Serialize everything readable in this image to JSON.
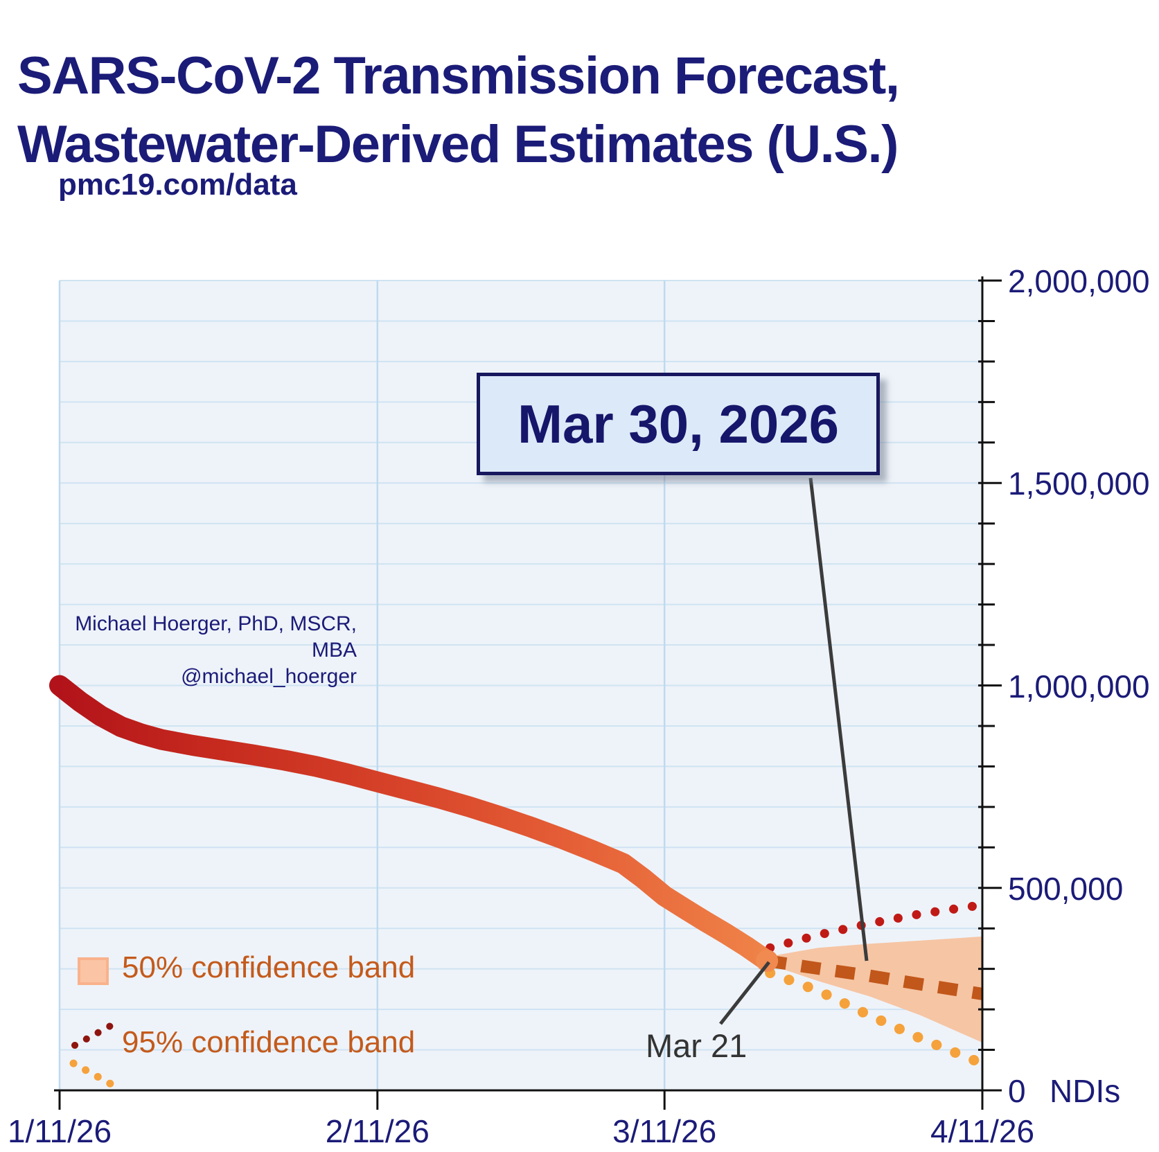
{
  "title": {
    "line1": "SARS-CoV-2 Transmission Forecast,",
    "line2": "Wastewater-Derived Estimates (U.S.)"
  },
  "subtitle": "pmc19.com/data",
  "attribution": {
    "line1": "Michael Hoerger, PhD, MSCR, MBA",
    "line2": "@michael_hoerger"
  },
  "annotations": {
    "forecast_date_callout": "Mar 30, 2026",
    "forecast_start_label": "Mar 21"
  },
  "legend": [
    {
      "label": "50% confidence band"
    },
    {
      "label": "95% confidence band"
    }
  ],
  "y_axis": {
    "unit": "NDIs",
    "tick_labels": [
      "2,000,000",
      "1,500,000",
      "1,000,000",
      "500,000",
      "0"
    ],
    "tick_values": [
      2000000,
      1500000,
      1000000,
      500000,
      0
    ],
    "minor_tick_step": 100000,
    "min": 0,
    "max": 2000000
  },
  "x_axis": {
    "tick_labels": [
      "1/11/26",
      "2/11/26",
      "3/11/26",
      "4/11/26"
    ],
    "tick_days": [
      0,
      31,
      59,
      90
    ],
    "span_days": 90
  },
  "colors": {
    "navy": "#1b1b78",
    "plot_bg": "#eef3f9",
    "grid_h": "#cfe3f2",
    "grid_v": "#bedaef",
    "axis": "#111111",
    "line_gradient": [
      "#b2131a",
      "#c62a1e",
      "#d8452a",
      "#e66238",
      "#ef8348"
    ],
    "knob": "#f08a50",
    "band50_fill": "#f6c5a4",
    "median_dash": "#c1571a",
    "upper95_dots": "#c01a16",
    "lower95_dots": "#f5a23c",
    "legend_maroon_dots": "#8e150f",
    "legend_text": "#c45a1b",
    "annotation_line": "#3b3b3b",
    "callout_bg": "#dce9f8"
  },
  "chart_data": {
    "type": "line",
    "title": "SARS-CoV-2 Transmission Forecast, Wastewater-Derived Estimates (U.S.)",
    "ylabel": "NDIs",
    "ylim": [
      0,
      2000000
    ],
    "x_unit": "days since 1/11/26",
    "grid": true,
    "observed": {
      "name": "wastewater-derived transmission estimate",
      "points": [
        [
          0,
          1000000
        ],
        [
          2,
          960000
        ],
        [
          4,
          925000
        ],
        [
          6,
          898000
        ],
        [
          8,
          880000
        ],
        [
          10,
          866000
        ],
        [
          13,
          852000
        ],
        [
          16,
          840000
        ],
        [
          19,
          828000
        ],
        [
          22,
          815000
        ],
        [
          25,
          800000
        ],
        [
          28,
          782000
        ],
        [
          31,
          762000
        ],
        [
          34,
          742000
        ],
        [
          37,
          722000
        ],
        [
          40,
          700000
        ],
        [
          43,
          676000
        ],
        [
          46,
          650000
        ],
        [
          49,
          622000
        ],
        [
          52,
          592000
        ],
        [
          55,
          560000
        ],
        [
          57,
          522000
        ],
        [
          59,
          480000
        ],
        [
          61,
          448000
        ],
        [
          63,
          417000
        ],
        [
          65,
          387000
        ],
        [
          67,
          355000
        ],
        [
          69,
          320000
        ]
      ]
    },
    "forecast_median": {
      "name": "forecast median",
      "points": [
        [
          69,
          320000
        ],
        [
          74,
          301000
        ],
        [
          79,
          283000
        ],
        [
          84,
          262000
        ],
        [
          90,
          238000
        ]
      ]
    },
    "band_50": {
      "upper": [
        [
          69,
          330000
        ],
        [
          74,
          352000
        ],
        [
          79,
          362000
        ],
        [
          84,
          370000
        ],
        [
          90,
          380000
        ]
      ],
      "lower": [
        [
          69,
          312000
        ],
        [
          74,
          270000
        ],
        [
          79,
          232000
        ],
        [
          84,
          185000
        ],
        [
          90,
          118000
        ]
      ]
    },
    "band_95": {
      "upper": [
        [
          69.3,
          352000
        ],
        [
          74,
          384000
        ],
        [
          79,
          412000
        ],
        [
          84,
          436000
        ],
        [
          90,
          458000
        ]
      ],
      "lower": [
        [
          69.3,
          290000
        ],
        [
          74,
          246000
        ],
        [
          79,
          185000
        ],
        [
          84,
          128000
        ],
        [
          90,
          66000
        ]
      ]
    },
    "forecast_start": {
      "label": "Mar 21",
      "day": 69,
      "value": 320000
    },
    "callout": {
      "label": "Mar 30, 2026",
      "day": 78
    }
  }
}
